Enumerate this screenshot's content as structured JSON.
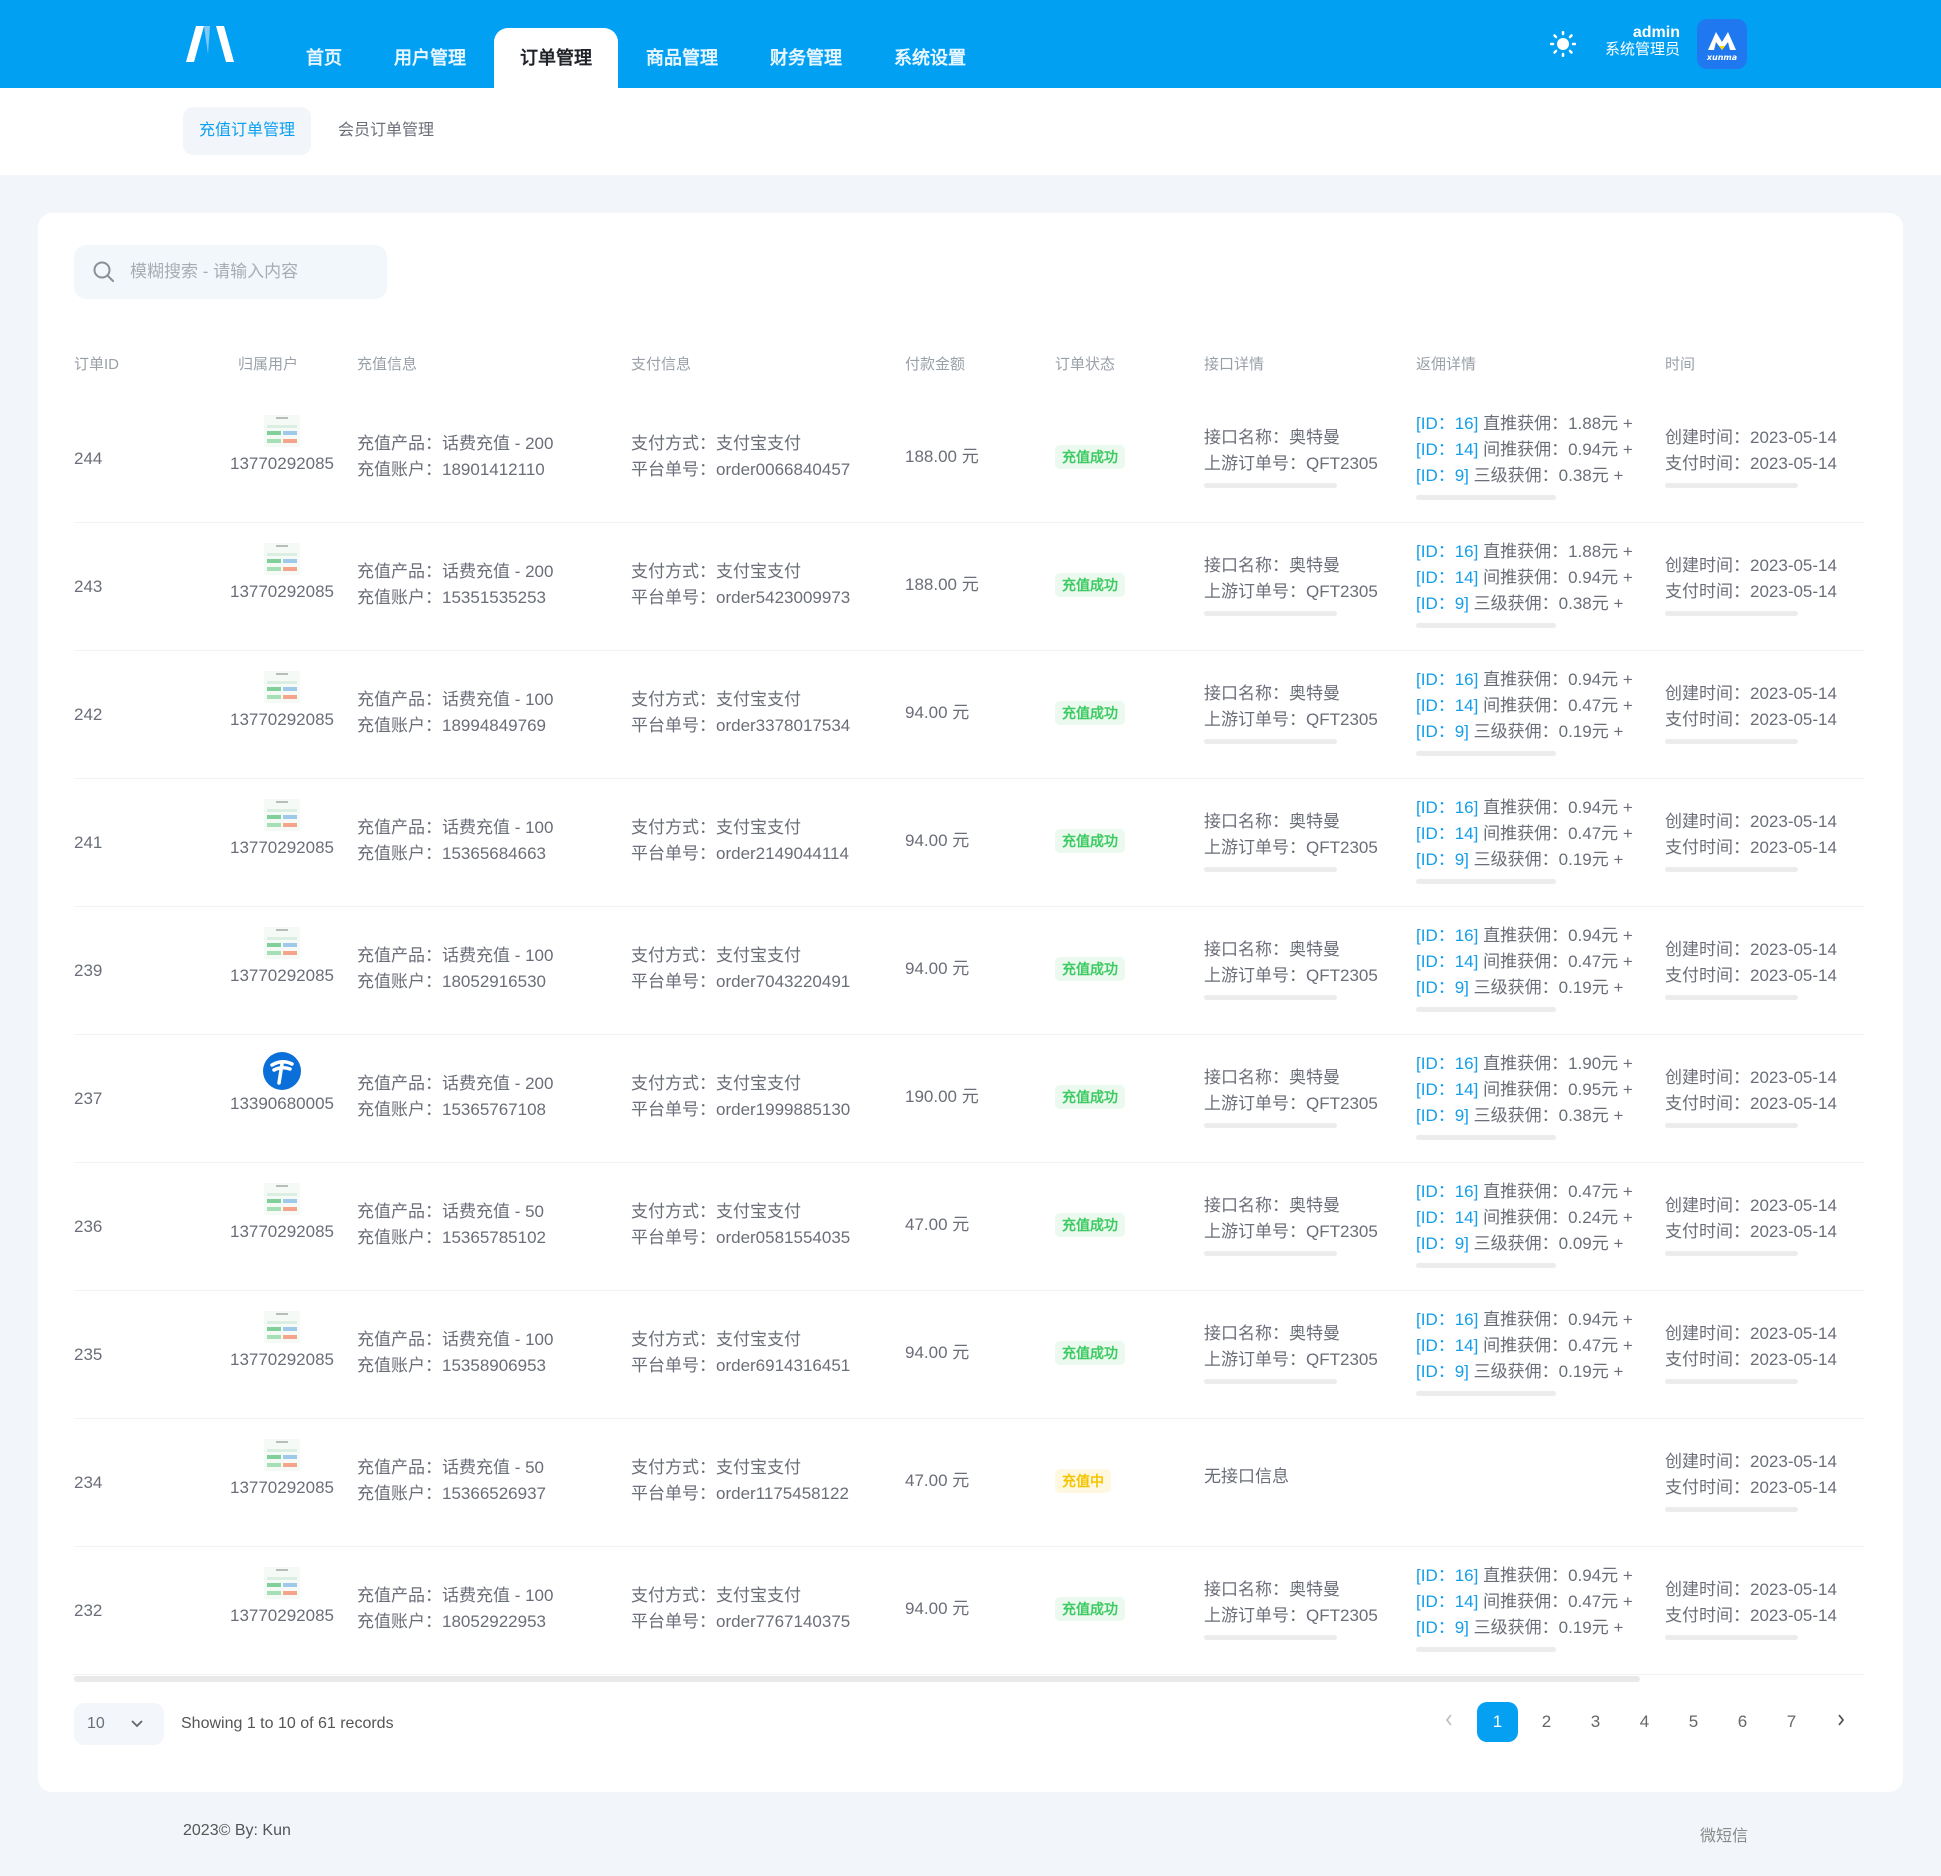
{
  "colors": {
    "primary": "#02a0f3",
    "success": "#3ccb62",
    "pending": "#f5c400",
    "link": "#119eea"
  },
  "header": {
    "nav": [
      {
        "label": "首页"
      },
      {
        "label": "用户管理"
      },
      {
        "label": "订单管理",
        "active": true
      },
      {
        "label": "商品管理"
      },
      {
        "label": "财务管理"
      },
      {
        "label": "系统设置"
      }
    ],
    "theme_icon": "sun-icon",
    "user_name": "admin",
    "user_role": "系统管理员",
    "avatar_text": "讯码"
  },
  "subnav": [
    {
      "label": "充值订单管理",
      "active": true
    },
    {
      "label": "会员订单管理"
    }
  ],
  "search": {
    "placeholder": "模糊搜索 - 请输入内容",
    "value": ""
  },
  "columns": [
    "订单ID",
    "归属用户",
    "充值信息",
    "支付信息",
    "付款金额",
    "订单状态",
    "接口详情",
    "返佣详情",
    "时间"
  ],
  "labels": {
    "product": "充值产品：",
    "account": "充值账户：",
    "pay_method": "支付方式：",
    "platform_no": "平台单号：",
    "api_name": "接口名称：",
    "upstream_no": "上游订单号：",
    "created": "创建时间：",
    "paid": "支付时间：",
    "l1": "直推获佣：",
    "l2": "间推获佣：",
    "l3": "三级获佣："
  },
  "rows": [
    {
      "id": "244",
      "user": "13770292085",
      "avatar": "screenshot",
      "product": "话费充值 - 200",
      "account": "18901412110",
      "pay": "支付宝支付",
      "order_no": "order0066840457",
      "amount": "188.00 元",
      "status": "充值成功",
      "status_type": "ok",
      "api": "奥特曼",
      "upstream": "QFT2305",
      "c1": "[ID：16]",
      "a1": "1.88元 +",
      "c2": "[ID：14]",
      "a2": "0.94元 +",
      "c3": "[ID：9]",
      "a3": "0.38元 +",
      "created": "2023-05-14",
      "paid": "2023-05-14"
    },
    {
      "id": "243",
      "user": "13770292085",
      "avatar": "screenshot",
      "product": "话费充值 - 200",
      "account": "15351535253",
      "pay": "支付宝支付",
      "order_no": "order5423009973",
      "amount": "188.00 元",
      "status": "充值成功",
      "status_type": "ok",
      "api": "奥特曼",
      "upstream": "QFT2305",
      "c1": "[ID：16]",
      "a1": "1.88元 +",
      "c2": "[ID：14]",
      "a2": "0.94元 +",
      "c3": "[ID：9]",
      "a3": "0.38元 +",
      "created": "2023-05-14",
      "paid": "2023-05-14"
    },
    {
      "id": "242",
      "user": "13770292085",
      "avatar": "screenshot",
      "product": "话费充值 - 100",
      "account": "18994849769",
      "pay": "支付宝支付",
      "order_no": "order3378017534",
      "amount": "94.00 元",
      "status": "充值成功",
      "status_type": "ok",
      "api": "奥特曼",
      "upstream": "QFT2305",
      "c1": "[ID：16]",
      "a1": "0.94元 +",
      "c2": "[ID：14]",
      "a2": "0.47元 +",
      "c3": "[ID：9]",
      "a3": "0.19元 +",
      "created": "2023-05-14",
      "paid": "2023-05-14"
    },
    {
      "id": "241",
      "user": "13770292085",
      "avatar": "screenshot",
      "product": "话费充值 - 100",
      "account": "15365684663",
      "pay": "支付宝支付",
      "order_no": "order2149044114",
      "amount": "94.00 元",
      "status": "充值成功",
      "status_type": "ok",
      "api": "奥特曼",
      "upstream": "QFT2305",
      "c1": "[ID：16]",
      "a1": "0.94元 +",
      "c2": "[ID：14]",
      "a2": "0.47元 +",
      "c3": "[ID：9]",
      "a3": "0.19元 +",
      "created": "2023-05-14",
      "paid": "2023-05-14"
    },
    {
      "id": "239",
      "user": "13770292085",
      "avatar": "screenshot",
      "product": "话费充值 - 100",
      "account": "18052916530",
      "pay": "支付宝支付",
      "order_no": "order7043220491",
      "amount": "94.00 元",
      "status": "充值成功",
      "status_type": "ok",
      "api": "奥特曼",
      "upstream": "QFT2305",
      "c1": "[ID：16]",
      "a1": "0.94元 +",
      "c2": "[ID：14]",
      "a2": "0.47元 +",
      "c3": "[ID：9]",
      "a3": "0.19元 +",
      "created": "2023-05-14",
      "paid": "2023-05-14"
    },
    {
      "id": "237",
      "user": "13390680005",
      "avatar": "telecom",
      "product": "话费充值 - 200",
      "account": "15365767108",
      "pay": "支付宝支付",
      "order_no": "order1999885130",
      "amount": "190.00 元",
      "status": "充值成功",
      "status_type": "ok",
      "api": "奥特曼",
      "upstream": "QFT2305",
      "c1": "[ID：16]",
      "a1": "1.90元 +",
      "c2": "[ID：14]",
      "a2": "0.95元 +",
      "c3": "[ID：9]",
      "a3": "0.38元 +",
      "created": "2023-05-14",
      "paid": "2023-05-14"
    },
    {
      "id": "236",
      "user": "13770292085",
      "avatar": "screenshot",
      "product": "话费充值 - 50",
      "account": "15365785102",
      "pay": "支付宝支付",
      "order_no": "order0581554035",
      "amount": "47.00 元",
      "status": "充值成功",
      "status_type": "ok",
      "api": "奥特曼",
      "upstream": "QFT2305",
      "c1": "[ID：16]",
      "a1": "0.47元 +",
      "c2": "[ID：14]",
      "a2": "0.24元 +",
      "c3": "[ID：9]",
      "a3": "0.09元 +",
      "created": "2023-05-14",
      "paid": "2023-05-14"
    },
    {
      "id": "235",
      "user": "13770292085",
      "avatar": "screenshot",
      "product": "话费充值 - 100",
      "account": "15358906953",
      "pay": "支付宝支付",
      "order_no": "order6914316451",
      "amount": "94.00 元",
      "status": "充值成功",
      "status_type": "ok",
      "api": "奥特曼",
      "upstream": "QFT2305",
      "c1": "[ID：16]",
      "a1": "0.94元 +",
      "c2": "[ID：14]",
      "a2": "0.47元 +",
      "c3": "[ID：9]",
      "a3": "0.19元 +",
      "created": "2023-05-14",
      "paid": "2023-05-14"
    },
    {
      "id": "234",
      "user": "13770292085",
      "avatar": "screenshot",
      "product": "话费充值 - 50",
      "account": "15366526937",
      "pay": "支付宝支付",
      "order_no": "order1175458122",
      "amount": "47.00 元",
      "status": "充值中",
      "status_type": "ing",
      "no_api": "无接口信息",
      "created": "2023-05-14",
      "paid": "2023-05-14"
    },
    {
      "id": "232",
      "user": "13770292085",
      "avatar": "screenshot",
      "product": "话费充值 - 100",
      "account": "18052922953",
      "pay": "支付宝支付",
      "order_no": "order7767140375",
      "amount": "94.00 元",
      "status": "充值成功",
      "status_type": "ok",
      "api": "奥特曼",
      "upstream": "QFT2305",
      "c1": "[ID：16]",
      "a1": "0.94元 +",
      "c2": "[ID：14]",
      "a2": "0.47元 +",
      "c3": "[ID：9]",
      "a3": "0.19元 +",
      "created": "2023-05-14",
      "paid": "2023-05-14"
    }
  ],
  "pagination": {
    "page_size": "10",
    "summary": "Showing 1 to 10 of 61 records",
    "pages": [
      "1",
      "2",
      "3",
      "4",
      "5",
      "6",
      "7"
    ],
    "current": "1"
  },
  "footer": {
    "left": "2023© By: Kun",
    "right": "微短信"
  }
}
